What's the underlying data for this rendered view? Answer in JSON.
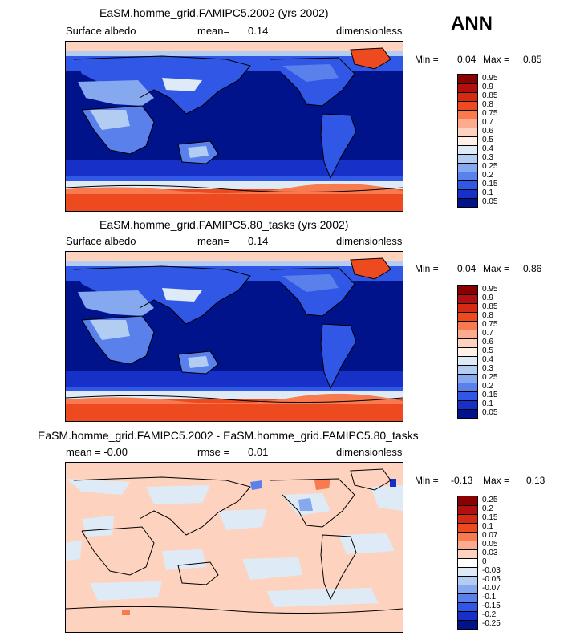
{
  "season": "ANN",
  "panels": [
    {
      "title": "EaSM.homme_grid.FAMIPC5.2002 (yrs 2002)",
      "left": "Surface albedo",
      "mid_label": "mean=",
      "mid_value": "0.14",
      "right": "dimensionless",
      "min_label": "Min =",
      "min_value": "0.04",
      "max_label": "Max =",
      "max_value": "0.85",
      "levels": [
        "0.95",
        "0.9",
        "0.85",
        "0.8",
        "0.75",
        "0.7",
        "0.6",
        "0.5",
        "0.4",
        "0.3",
        "0.25",
        "0.2",
        "0.15",
        "0.1",
        "0.05"
      ],
      "colors": [
        "#8b0000",
        "#b30f0f",
        "#d62a12",
        "#ee4a20",
        "#f97a4f",
        "#fcab8f",
        "#fdd3bf",
        "#fff0e8",
        "#deebf7",
        "#b3cdf2",
        "#85a8ee",
        "#5a80ec",
        "#3157e6",
        "#1630c8",
        "#00138a"
      ]
    },
    {
      "title": "EaSM.homme_grid.FAMIPC5.80_tasks (yrs 2002)",
      "left": "Surface albedo",
      "mid_label": "mean=",
      "mid_value": "0.14",
      "right": "dimensionless",
      "min_label": "Min =",
      "min_value": "0.04",
      "max_label": "Max =",
      "max_value": "0.86",
      "levels": [
        "0.95",
        "0.9",
        "0.85",
        "0.8",
        "0.75",
        "0.7",
        "0.6",
        "0.5",
        "0.4",
        "0.3",
        "0.25",
        "0.2",
        "0.15",
        "0.1",
        "0.05"
      ],
      "colors": [
        "#8b0000",
        "#b30f0f",
        "#d62a12",
        "#ee4a20",
        "#f97a4f",
        "#fcab8f",
        "#fdd3bf",
        "#fff0e8",
        "#deebf7",
        "#b3cdf2",
        "#85a8ee",
        "#5a80ec",
        "#3157e6",
        "#1630c8",
        "#00138a"
      ]
    },
    {
      "title": "EaSM.homme_grid.FAMIPC5.2002 - EaSM.homme_grid.FAMIPC5.80_tasks",
      "left": "mean =  -0.00",
      "mid_label": "rmse =",
      "mid_value": "0.01",
      "right": "dimensionless",
      "min_label": "Min =",
      "min_value": "-0.13",
      "max_label": "Max =",
      "max_value": "0.13",
      "levels": [
        "0.25",
        "0.2",
        "0.15",
        "0.1",
        "0.07",
        "0.05",
        "0.03",
        "0",
        "-0.03",
        "-0.05",
        "-0.07",
        "-0.1",
        "-0.15",
        "-0.2",
        "-0.25"
      ],
      "colors": [
        "#8b0000",
        "#b30f0f",
        "#d62a12",
        "#ee4a20",
        "#f97a4f",
        "#fcab8f",
        "#fdd3bf",
        "#ffffff",
        "#deebf7",
        "#b3cdf2",
        "#85a8ee",
        "#5a80ec",
        "#3157e6",
        "#1630c8",
        "#00138a"
      ]
    }
  ]
}
